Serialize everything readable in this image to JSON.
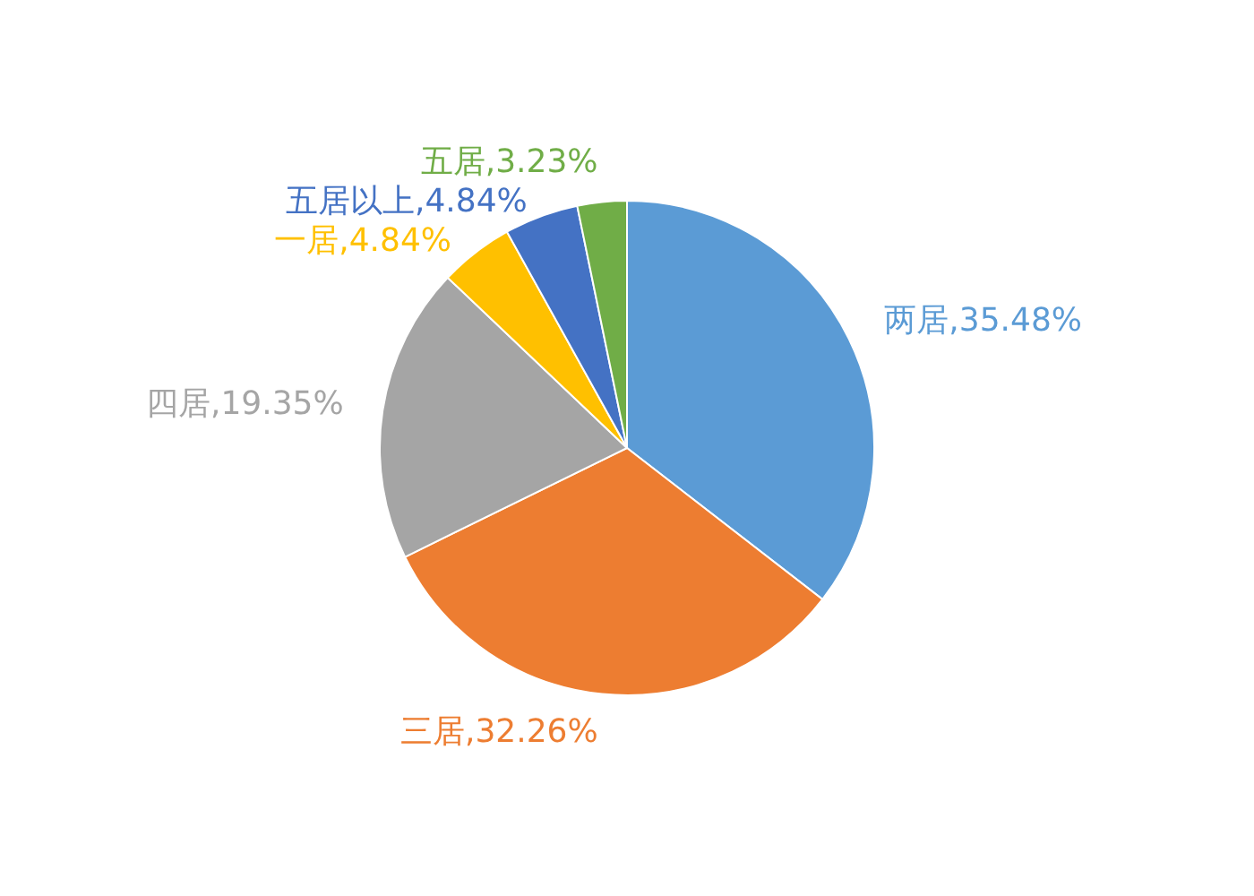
{
  "chart_data": {
    "type": "pie",
    "categories": [
      "两居",
      "三居",
      "四居",
      "一居",
      "五居以上",
      "五居"
    ],
    "values": [
      35.48,
      32.26,
      19.35,
      4.84,
      4.84,
      3.23
    ],
    "colors": [
      "#5b9bd5",
      "#ed7d31",
      "#a5a5a5",
      "#ffc000",
      "#4472c4",
      "#70ad47"
    ],
    "value_labels": [
      "35.48%",
      "32.26%",
      "19.35%",
      "4.84%",
      "4.84%",
      "3.23%"
    ]
  }
}
